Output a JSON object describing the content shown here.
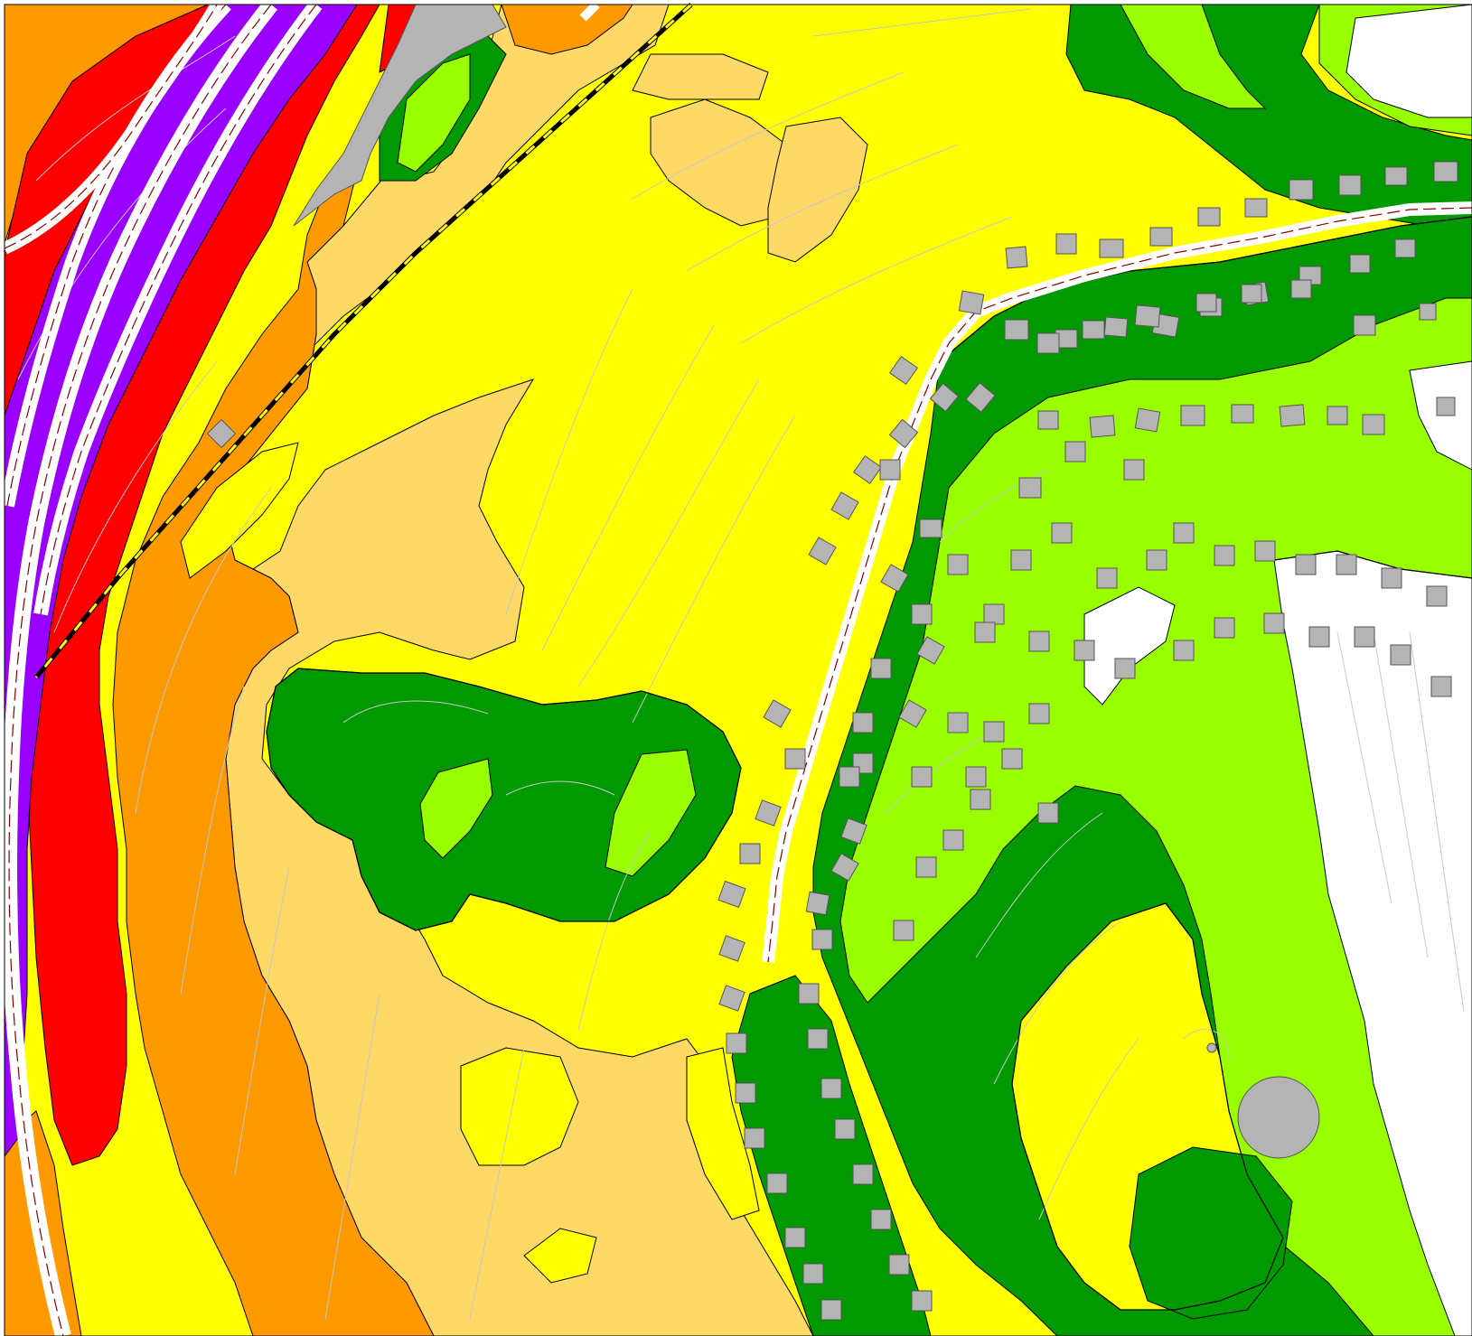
{
  "map": {
    "type": "noise-contour-map",
    "legend": "none",
    "zone_colors": {
      "white_low": "#ffffff",
      "light_green": "#99ff00",
      "dark_green": "#009900",
      "yellow": "#ffff00",
      "light_orange": "#ffd966",
      "orange": "#ff9900",
      "red": "#ff0000",
      "purple": "#9900ff"
    },
    "feature_colors": {
      "building_fill": "#b4b4b4",
      "building_stroke": "#555555",
      "road_fill": "#ffffff",
      "road_line": "#8b0000",
      "railway": "#000000",
      "contour_line": "#c8c8c8",
      "zone_border": "#000000",
      "frame": "#000000"
    }
  }
}
